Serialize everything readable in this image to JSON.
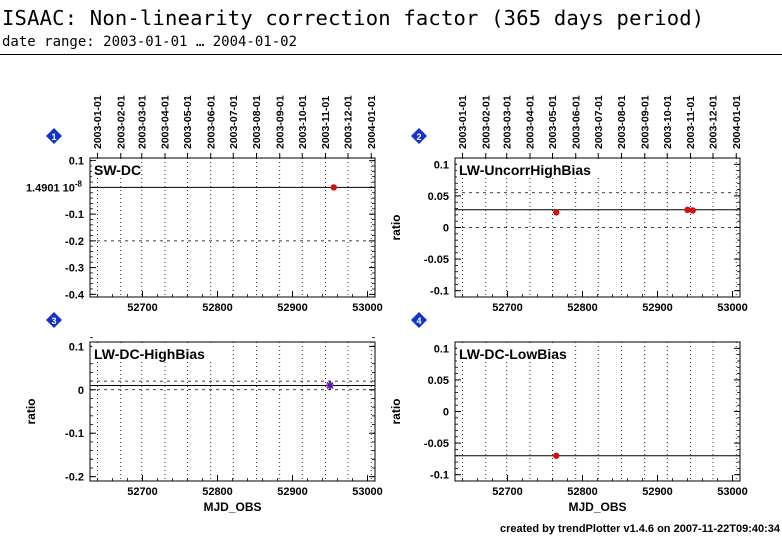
{
  "header": {
    "title": "ISAAC: Non-linearity correction factor (365 days period)",
    "subtitle": "date range: 2003-01-01 … 2004-01-02"
  },
  "footer": {
    "credit": "created by trendPlotter v1.4.6 on 2007-11-22T09:40:34"
  },
  "colors": {
    "point": "#d01010",
    "marker_blue": "#1f3fbf",
    "star": "#5a1a9a",
    "badge": "#1133cc"
  },
  "date_ticks": [
    "2003-01-01",
    "2003-02-01",
    "2003-03-01",
    "2003-04-01",
    "2003-05-01",
    "2003-06-01",
    "2003-07-01",
    "2003-08-01",
    "2003-09-01",
    "2003-10-01",
    "2003-11-01",
    "2003-12-01",
    "2004-01-01"
  ],
  "chart_data": [
    {
      "panel": "1",
      "type": "scatter",
      "title": "SW-DC",
      "xlabel": "",
      "ylabel": "",
      "xlim": [
        52630,
        53010
      ],
      "ylim": [
        -0.41,
        0.11
      ],
      "yticks": [
        0.1,
        0,
        -0.1,
        -0.2,
        -0.3,
        -0.4
      ],
      "ytick_labels": [
        "0.1",
        "",
        "-0.1",
        "-0.2",
        "-0.3",
        "-0.4"
      ],
      "ref_label": "1.4901 10",
      "ref_label_exp": "-8",
      "ref_line": 1.4901e-08,
      "dashed_lines": [
        -0.2
      ],
      "xticks": [
        52700,
        52800,
        52900,
        53000
      ],
      "marker": "dot",
      "points": [
        {
          "x": 52955,
          "y": 0.0
        }
      ]
    },
    {
      "panel": "2",
      "type": "scatter",
      "title": "LW-UncorrHighBias",
      "xlabel": "",
      "ylabel": "ratio",
      "xlim": [
        52630,
        53010
      ],
      "ylim": [
        -0.11,
        0.11
      ],
      "yticks": [
        0.1,
        0.05,
        0,
        -0.05,
        -0.1
      ],
      "ytick_labels": [
        "0.1",
        "0.05",
        "0",
        "-0.05",
        "-0.1"
      ],
      "ref_line": 0.028,
      "dashed_lines": [
        0.055,
        0
      ],
      "xticks": [
        52700,
        52800,
        52900,
        53000
      ],
      "marker": "dot",
      "points": [
        {
          "x": 52765,
          "y": 0.024
        },
        {
          "x": 52940,
          "y": 0.028
        },
        {
          "x": 52947,
          "y": 0.027
        }
      ]
    },
    {
      "panel": "3",
      "type": "scatter",
      "title": "LW-DC-HighBias",
      "xlabel": "MJD_OBS",
      "ylabel": "ratio",
      "xlim": [
        52630,
        53010
      ],
      "ylim": [
        -0.21,
        0.11
      ],
      "yticks": [
        0.1,
        0,
        -0.1,
        -0.2
      ],
      "ytick_labels": [
        "0.1",
        "0",
        "-0.1",
        "-0.2"
      ],
      "ref_line": 0.01,
      "dashed_lines": [
        0.02,
        0
      ],
      "xticks": [
        52700,
        52800,
        52900,
        53000
      ],
      "marker": "star",
      "points": [
        {
          "x": 52950,
          "y": 0.01
        }
      ]
    },
    {
      "panel": "4",
      "type": "scatter",
      "title": "LW-DC-LowBias",
      "xlabel": "MJD_OBS",
      "ylabel": "ratio",
      "xlim": [
        52630,
        53010
      ],
      "ylim": [
        -0.11,
        0.11
      ],
      "yticks": [
        0.1,
        0.05,
        0,
        -0.05,
        -0.1
      ],
      "ytick_labels": [
        "0.1",
        "0.05",
        "0",
        "-0.05",
        "-0.1"
      ],
      "ref_line": -0.07,
      "dashed_lines": [],
      "xticks": [
        52700,
        52800,
        52900,
        53000
      ],
      "marker": "dot",
      "points": [
        {
          "x": 52765,
          "y": -0.07
        }
      ]
    }
  ]
}
